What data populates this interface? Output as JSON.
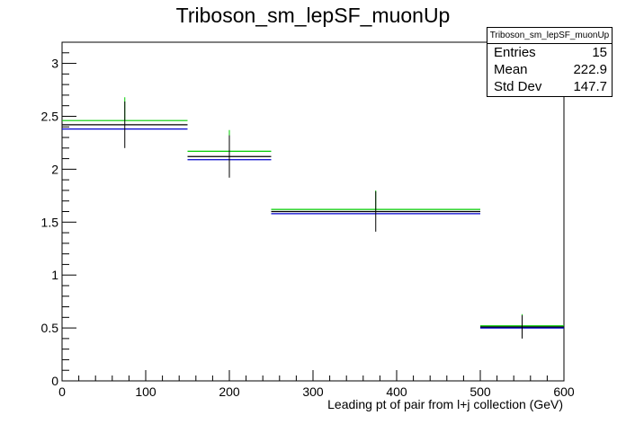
{
  "chart_data": {
    "type": "histogram",
    "title": "Triboson_sm_lepSF_muonUp",
    "xlabel": "Leading pt of pair from l+j collection (GeV)",
    "ylabel": "",
    "xlim": [
      0,
      600
    ],
    "ylim": [
      0,
      3.2
    ],
    "xticks": [
      "0",
      "100",
      "200",
      "300",
      "400",
      "500",
      "600"
    ],
    "yticks": [
      "0",
      "0.5",
      "1",
      "1.5",
      "2",
      "2.5",
      "3"
    ],
    "bins": [
      {
        "low": 0,
        "high": 150,
        "center": 75
      },
      {
        "low": 150,
        "high": 250,
        "center": 200
      },
      {
        "low": 250,
        "high": 500,
        "center": 375
      },
      {
        "low": 500,
        "high": 600,
        "center": 550
      }
    ],
    "series": [
      {
        "color": "#00cc00",
        "values": [
          2.46,
          2.17,
          1.62,
          0.52
        ]
      },
      {
        "color": "#000000",
        "values": [
          2.42,
          2.12,
          1.6,
          0.51
        ],
        "errors": [
          0.22,
          0.2,
          0.19,
          0.11
        ]
      },
      {
        "color": "#0000cc",
        "values": [
          2.38,
          2.09,
          1.58,
          0.5
        ]
      }
    ],
    "green_error_tops": [
      2.68,
      2.37,
      1.8,
      0.63
    ]
  },
  "stats_box": {
    "name": "Triboson_sm_lepSF_muonUp",
    "rows": [
      {
        "label": "Entries",
        "value": "15"
      },
      {
        "label": "Mean",
        "value": "222.9"
      },
      {
        "label": "Std Dev",
        "value": "147.7"
      }
    ]
  }
}
